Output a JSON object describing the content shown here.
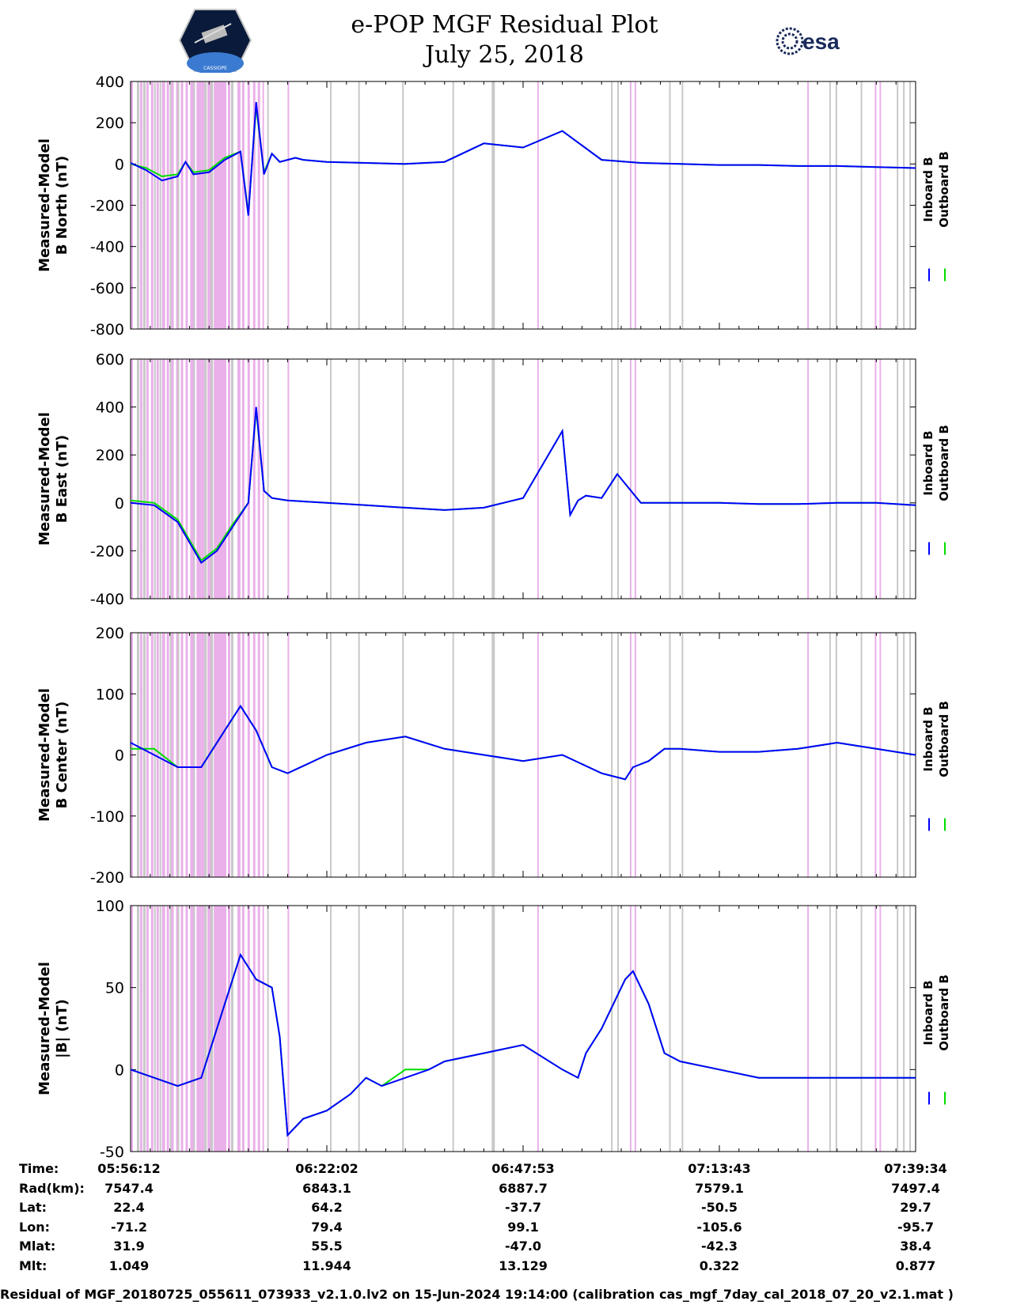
{
  "header": {
    "title_line1": "e-POP MGF Residual Plot",
    "title_line2": "July 25, 2018",
    "logo_left_text": "CASSIOPE",
    "logo_right_text": "esa"
  },
  "legend": {
    "inboard": "Inboard B",
    "outboard": "Outboard B"
  },
  "colors": {
    "inboard": "#0000ff",
    "outboard": "#00dd00",
    "band_magenta": "#eab0ea",
    "band_gray": "#c8c8c8"
  },
  "chart_data": [
    {
      "type": "line",
      "ylabel_line1": "Measured-Model",
      "ylabel_line2": "B North (nT)",
      "ylim": [
        -800,
        400
      ],
      "yticks": [
        "400",
        "200",
        "0",
        "-200",
        "-400",
        "-600",
        "-800"
      ],
      "x": [
        0,
        2,
        4,
        6,
        7,
        8,
        10,
        12,
        14,
        15,
        16,
        17,
        18,
        19,
        20,
        21,
        22,
        25,
        30,
        35,
        40,
        45,
        50,
        55,
        60,
        65,
        70,
        75,
        80,
        85,
        90,
        95,
        100
      ],
      "series": [
        {
          "name": "Inboard B",
          "values": [
            5,
            -30,
            -80,
            -60,
            10,
            -50,
            -40,
            20,
            60,
            -250,
            300,
            -50,
            50,
            10,
            20,
            30,
            20,
            10,
            5,
            0,
            10,
            100,
            80,
            160,
            20,
            5,
            0,
            -5,
            -5,
            -10,
            -10,
            -15,
            -20
          ]
        },
        {
          "name": "Outboard B",
          "values": [
            0,
            -20,
            -60,
            -50,
            10,
            -40,
            -30,
            30,
            60,
            -240,
            280,
            -40,
            50,
            10,
            20,
            30,
            20,
            10,
            5,
            0,
            10,
            100,
            80,
            160,
            20,
            5,
            0,
            -5,
            -5,
            -10,
            -10,
            -15,
            -20
          ]
        }
      ]
    },
    {
      "type": "line",
      "ylabel_line1": "Measured-Model",
      "ylabel_line2": "B East (nT)",
      "ylim": [
        -400,
        600
      ],
      "yticks": [
        "600",
        "400",
        "200",
        "0",
        "-200",
        "-400"
      ],
      "x": [
        0,
        3,
        6,
        9,
        11,
        13,
        15,
        16,
        17,
        18,
        20,
        25,
        30,
        35,
        40,
        45,
        50,
        55,
        56,
        57,
        58,
        60,
        62,
        65,
        70,
        75,
        80,
        85,
        90,
        95,
        100
      ],
      "series": [
        {
          "name": "Inboard B",
          "values": [
            0,
            -10,
            -80,
            -250,
            -200,
            -100,
            0,
            400,
            50,
            20,
            10,
            0,
            -10,
            -20,
            -30,
            -20,
            20,
            300,
            -50,
            10,
            30,
            20,
            120,
            0,
            0,
            0,
            -5,
            -5,
            0,
            0,
            -10
          ]
        },
        {
          "name": "Outboard B",
          "values": [
            10,
            0,
            -70,
            -240,
            -190,
            -90,
            0,
            390,
            50,
            20,
            10,
            0,
            -10,
            -20,
            -30,
            -20,
            20,
            300,
            -50,
            10,
            30,
            20,
            120,
            0,
            0,
            0,
            -5,
            -5,
            0,
            0,
            -10
          ]
        }
      ]
    },
    {
      "type": "line",
      "ylabel_line1": "Measured-Model",
      "ylabel_line2": "B Center (nT)",
      "ylim": [
        -200,
        200
      ],
      "yticks": [
        "200",
        "100",
        "0",
        "-100",
        "-200"
      ],
      "x": [
        0,
        3,
        6,
        9,
        12,
        14,
        16,
        18,
        20,
        25,
        30,
        35,
        40,
        45,
        50,
        55,
        60,
        63,
        64,
        66,
        68,
        70,
        75,
        80,
        85,
        90,
        95,
        100
      ],
      "series": [
        {
          "name": "Inboard B",
          "values": [
            20,
            0,
            -20,
            -20,
            40,
            80,
            40,
            -20,
            -30,
            0,
            20,
            30,
            10,
            0,
            -10,
            0,
            -30,
            -40,
            -20,
            -10,
            10,
            10,
            5,
            5,
            10,
            20,
            10,
            0
          ]
        },
        {
          "name": "Outboard B",
          "values": [
            10,
            10,
            -20,
            -20,
            40,
            80,
            40,
            -20,
            -30,
            0,
            20,
            30,
            10,
            0,
            -10,
            0,
            -30,
            -40,
            -20,
            -10,
            10,
            10,
            5,
            5,
            10,
            20,
            10,
            0
          ]
        }
      ]
    },
    {
      "type": "line",
      "ylabel_line1": "Measured-Model",
      "ylabel_line2": "|B| (nT)",
      "ylim": [
        -50,
        100
      ],
      "yticks": [
        "100",
        "50",
        "0",
        "-50"
      ],
      "x": [
        0,
        3,
        6,
        9,
        12,
        14,
        16,
        18,
        19,
        20,
        22,
        25,
        28,
        30,
        32,
        35,
        38,
        40,
        45,
        50,
        55,
        57,
        58,
        60,
        63,
        64,
        66,
        68,
        70,
        75,
        80,
        85,
        90,
        95,
        100
      ],
      "series": [
        {
          "name": "Inboard B",
          "values": [
            0,
            -5,
            -10,
            -5,
            40,
            70,
            55,
            50,
            20,
            -40,
            -30,
            -25,
            -15,
            -5,
            -10,
            -5,
            0,
            5,
            10,
            15,
            0,
            -5,
            10,
            25,
            55,
            60,
            40,
            10,
            5,
            0,
            -5,
            -5,
            -5,
            -5,
            -5
          ]
        },
        {
          "name": "Outboard B",
          "values": [
            0,
            -5,
            -10,
            -5,
            40,
            70,
            55,
            50,
            20,
            -40,
            -30,
            -25,
            -15,
            -5,
            -10,
            0,
            0,
            5,
            10,
            15,
            0,
            -5,
            10,
            25,
            55,
            60,
            40,
            10,
            5,
            0,
            -5,
            -5,
            -5,
            -5,
            -5
          ]
        }
      ]
    }
  ],
  "info_table": {
    "labels": [
      "Time:",
      "Rad(km):",
      "Lat:",
      "Lon:",
      "Mlat:",
      "Mlt:"
    ],
    "columns": [
      [
        "05:56:12",
        "7547.4",
        "22.4",
        "-71.2",
        "31.9",
        "1.049"
      ],
      [
        "06:22:02",
        "6843.1",
        "64.2",
        "79.4",
        "55.5",
        "11.944"
      ],
      [
        "06:47:53",
        "6887.7",
        "-37.7",
        "99.1",
        "-47.0",
        "13.129"
      ],
      [
        "07:13:43",
        "7579.1",
        "-50.5",
        "-105.6",
        "-42.3",
        "0.322"
      ],
      [
        "07:39:34",
        "7497.4",
        "29.7",
        "-95.7",
        "38.4",
        "0.877"
      ]
    ]
  },
  "footer": "Residual of MGF_20180725_055611_073933_v2.1.0.lv2 on 15-Jun-2024 19:14:00 (calibration cas_mgf_7day_cal_2018_07_20_v2.1.mat )"
}
